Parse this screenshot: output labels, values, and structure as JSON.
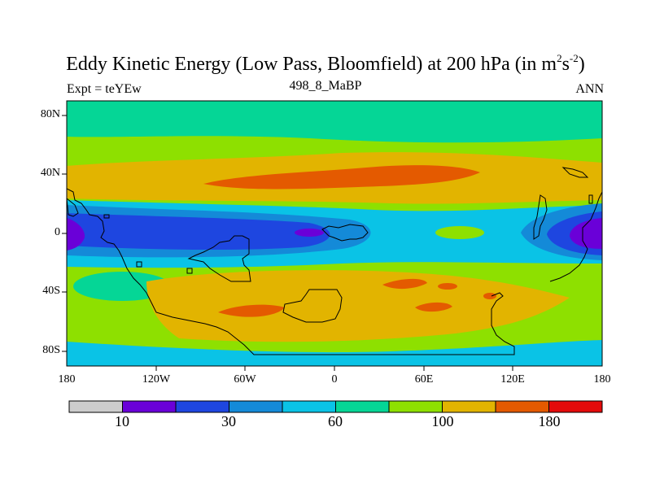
{
  "title": {
    "main": "Eddy Kinetic Energy (Low Pass, Bloomfield) at 200 hPa (in m",
    "sup1": "2",
    "mid": "s",
    "sup2": "-2",
    "close": ")"
  },
  "subtitle": {
    "left": "Expt = teYEw",
    "center": "498_8_MaBP",
    "right": "ANN"
  },
  "axes": {
    "y_ticks": [
      "80N",
      "40N",
      "0",
      "40S",
      "80S"
    ],
    "x_ticks": [
      "180",
      "120W",
      "60W",
      "0",
      "60E",
      "120E",
      "180"
    ]
  },
  "colors": {
    "levels": [
      "#cccccc",
      "#6a00d8",
      "#1e46e0",
      "#148ad8",
      "#0ac3e6",
      "#05d696",
      "#8ee000",
      "#e2b400",
      "#e45a00",
      "#e40a0a"
    ],
    "frame": "#000000"
  },
  "colorbar": {
    "labels": [
      "10",
      "30",
      "60",
      "100",
      "180"
    ]
  }
}
